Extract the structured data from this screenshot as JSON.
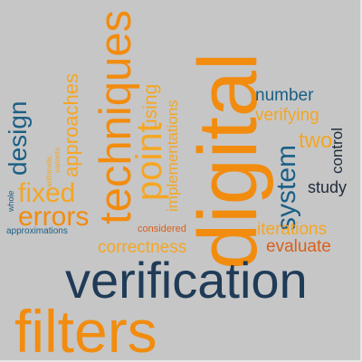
{
  "words": {
    "verification": "verification",
    "filters": "filters",
    "digital": "digital",
    "techniques": "techniques",
    "fixed": "fixed",
    "errors": "errors",
    "design": "design",
    "approaches": "approaches",
    "point": "point",
    "using": "using",
    "implementations": "implementations",
    "number": "number",
    "verifying": "verifying",
    "two": "two",
    "control": "control",
    "system": "system",
    "study": "study",
    "iterations": "iterations",
    "evaluate": "evaluate",
    "correctness": "correctness",
    "considered": "considered",
    "approximations": "approximations",
    "whole": "whole",
    "arithmetic": "arithmetic",
    "variants": "variants"
  },
  "colors": {
    "background": "#c6c6c6",
    "navy": "#1f3b57",
    "orange": "#f28c0f",
    "amber": "#f5a623",
    "teal": "#1a5f86",
    "rust": "#d9601a"
  }
}
